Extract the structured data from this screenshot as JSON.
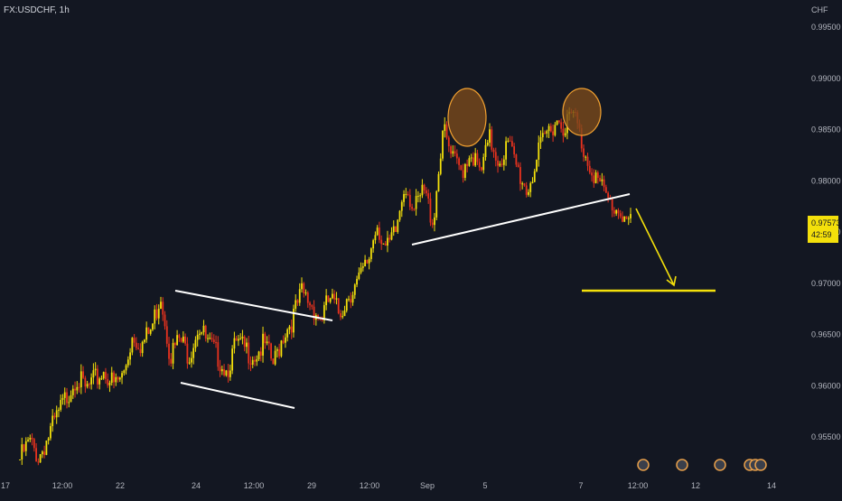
{
  "header": {
    "symbol": "FX:USDCHF, 1h"
  },
  "axis": {
    "currency": "CHF",
    "price_ticks": [
      "0.99500",
      "0.99000",
      "0.98500",
      "0.98000",
      "0.97500",
      "0.97000",
      "0.96500",
      "0.96000",
      "0.95500"
    ],
    "time_ticks": [
      "17",
      "12:00",
      "22",
      "24",
      "12:00",
      "29",
      "12:00",
      "Sep",
      "5",
      "7",
      "12:00",
      "12",
      "14"
    ]
  },
  "last_price": {
    "price": "0.97573",
    "countdown": "42:59"
  },
  "colors": {
    "bg": "#131722",
    "up": "#f4e00b",
    "down": "#e8321e",
    "annotation_white": "#ffffff",
    "circle_fill": "#7a4a1c",
    "circle_stroke": "#f0a030",
    "target": "#f4e00b"
  },
  "chart_data": {
    "type": "candlestick",
    "title": "",
    "xlabel": "",
    "ylabel": "",
    "ylim": [
      0.951,
      0.996
    ],
    "grid": false,
    "close_path": [
      0.9528,
      0.9545,
      0.953,
      0.955,
      0.957,
      0.959,
      0.961,
      0.9595,
      0.9605,
      0.9615,
      0.96,
      0.961,
      0.965,
      0.964,
      0.9655,
      0.969,
      0.963,
      0.9645,
      0.963,
      0.966,
      0.964,
      0.963,
      0.9615,
      0.964,
      0.9635,
      0.963,
      0.964,
      0.962,
      0.965,
      0.9665,
      0.969,
      0.968,
      0.9665,
      0.9685,
      0.967,
      0.969,
      0.97,
      0.972,
      0.976,
      0.973,
      0.975,
      0.98,
      0.977,
      0.979,
      0.976,
      0.985,
      0.982,
      0.981,
      0.983,
      0.9805,
      0.984,
      0.982,
      0.9835,
      0.981,
      0.979,
      0.982,
      0.9845,
      0.986,
      0.9855,
      0.9865,
      0.983,
      0.981,
      0.979,
      0.9775,
      0.977,
      0.9757
    ],
    "annotations": {
      "channel_upper": [
        [
          0.969,
          "24"
        ],
        [
          0.966,
          "29"
        ]
      ],
      "channel_lower": [
        [
          0.9605,
          "24"
        ],
        [
          0.958,
          "29"
        ]
      ],
      "neckline": "rising support from Sep to 7",
      "target_level": 0.9692
    }
  }
}
